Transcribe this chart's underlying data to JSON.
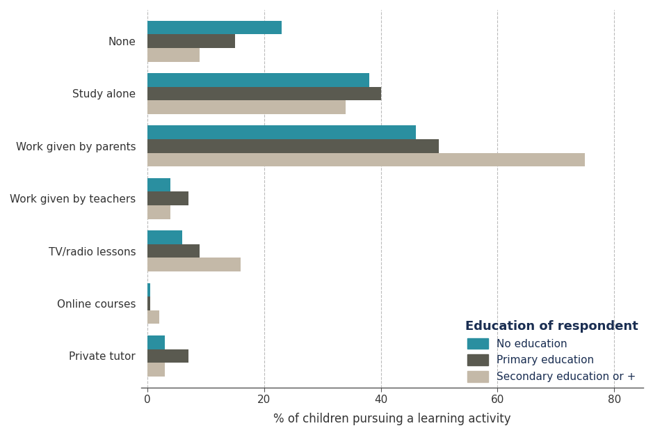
{
  "categories": [
    "Private tutor",
    "Online courses",
    "TV/radio lessons",
    "Work given by teachers",
    "Work given by parents",
    "Study alone",
    "None"
  ],
  "no_education": [
    3,
    0.5,
    6,
    4,
    46,
    38,
    23
  ],
  "primary_education": [
    7,
    0.5,
    9,
    7,
    50,
    40,
    15
  ],
  "secondary_education": [
    3,
    2,
    16,
    4,
    75,
    34,
    9
  ],
  "colors": {
    "no_education": "#2a8fa0",
    "primary_education": "#5a5a50",
    "secondary_education": "#c4b9a8"
  },
  "legend_title": "Education of respondent",
  "legend_labels": [
    "No education",
    "Primary education",
    "Secondary education or +"
  ],
  "xlabel": "% of children pursuing a learning activity",
  "xlim": [
    -1,
    85
  ],
  "xticks": [
    0,
    20,
    40,
    60,
    80
  ],
  "bar_height": 0.26,
  "background_color": "#ffffff",
  "text_color": "#1a2e52",
  "grid_color": "#bbbbbb",
  "legend_title_fontsize": 13,
  "axis_fontsize": 12,
  "tick_fontsize": 11,
  "category_fontsize": 11
}
